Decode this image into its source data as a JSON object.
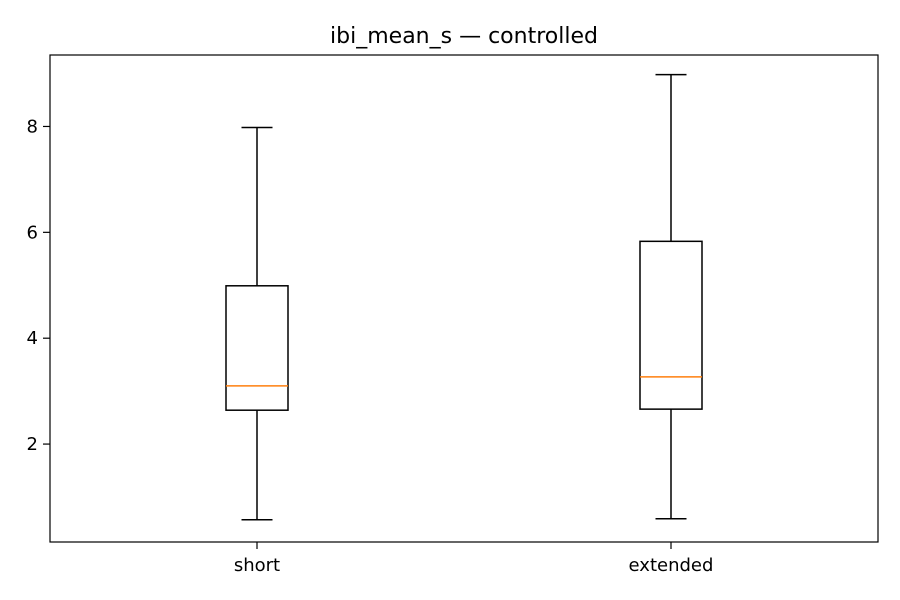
{
  "chart_data": {
    "type": "boxplot",
    "title": "ibi_mean_s — controlled",
    "xlabel": "",
    "ylabel": "",
    "ylim": [
      0.15,
      9.35
    ],
    "yticks": [
      2,
      4,
      6,
      8
    ],
    "grid": false,
    "legend": "none",
    "categories": [
      "short",
      "extended"
    ],
    "boxes": [
      {
        "category": "short",
        "whisker_low": 0.57,
        "q1": 2.64,
        "median": 3.1,
        "q3": 4.99,
        "whisker_high": 7.98
      },
      {
        "category": "extended",
        "whisker_low": 0.59,
        "q1": 2.66,
        "median": 3.27,
        "q3": 5.83,
        "whisker_high": 8.98
      }
    ],
    "colors": {
      "box": "#000000",
      "median": "#ff7f0e",
      "axes": "#000000"
    }
  }
}
